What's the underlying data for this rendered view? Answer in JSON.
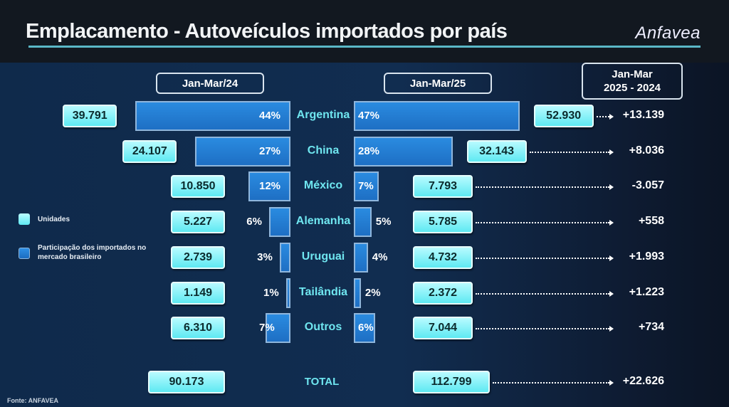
{
  "header": {
    "title": "Emplacamento - Autoveículos importados por país",
    "logo": "Anfavea"
  },
  "legend": {
    "units": "Unidades",
    "share": "Participação dos importados no mercado brasileiro",
    "units_color": "#7ef3f8",
    "share_color": "#2378d0"
  },
  "source": "Fonte: ANFAVEA",
  "chart_data": {
    "type": "bar",
    "title": "Emplacamento - Autoveículos importados por país",
    "periods": {
      "left": "Jan-Mar/24",
      "right": "Jan-Mar/25",
      "diff_line1": "Jan-Mar",
      "diff_line2": "2025 - 2024"
    },
    "rows": [
      {
        "country": "Argentina",
        "units_24": "39.791",
        "pct_24": 44,
        "pct_24_label": "44%",
        "units_25": "52.930",
        "pct_25": 47,
        "pct_25_label": "47%",
        "delta": "+13.139"
      },
      {
        "country": "China",
        "units_24": "24.107",
        "pct_24": 27,
        "pct_24_label": "27%",
        "units_25": "32.143",
        "pct_25": 28,
        "pct_25_label": "28%",
        "delta": "+8.036"
      },
      {
        "country": "México",
        "units_24": "10.850",
        "pct_24": 12,
        "pct_24_label": "12%",
        "units_25": "7.793",
        "pct_25": 7,
        "pct_25_label": "7%",
        "delta": "-3.057"
      },
      {
        "country": "Alemanha",
        "units_24": "5.227",
        "pct_24": 6,
        "pct_24_label": "6%",
        "units_25": "5.785",
        "pct_25": 5,
        "pct_25_label": "5%",
        "delta": "+558"
      },
      {
        "country": "Uruguai",
        "units_24": "2.739",
        "pct_24": 3,
        "pct_24_label": "3%",
        "units_25": "4.732",
        "pct_25": 4,
        "pct_25_label": "4%",
        "delta": "+1.993"
      },
      {
        "country": "Tailândia",
        "units_24": "1.149",
        "pct_24": 1,
        "pct_24_label": "1%",
        "units_25": "2.372",
        "pct_25": 2,
        "pct_25_label": "2%",
        "delta": "+1.223"
      },
      {
        "country": "Outros",
        "units_24": "6.310",
        "pct_24": 7,
        "pct_24_label": "7%",
        "units_25": "7.044",
        "pct_25": 6,
        "pct_25_label": "6%",
        "delta": "+734"
      }
    ],
    "total": {
      "label": "TOTAL",
      "units_24": "90.173",
      "units_25": "112.799",
      "delta": "+22.626"
    }
  }
}
